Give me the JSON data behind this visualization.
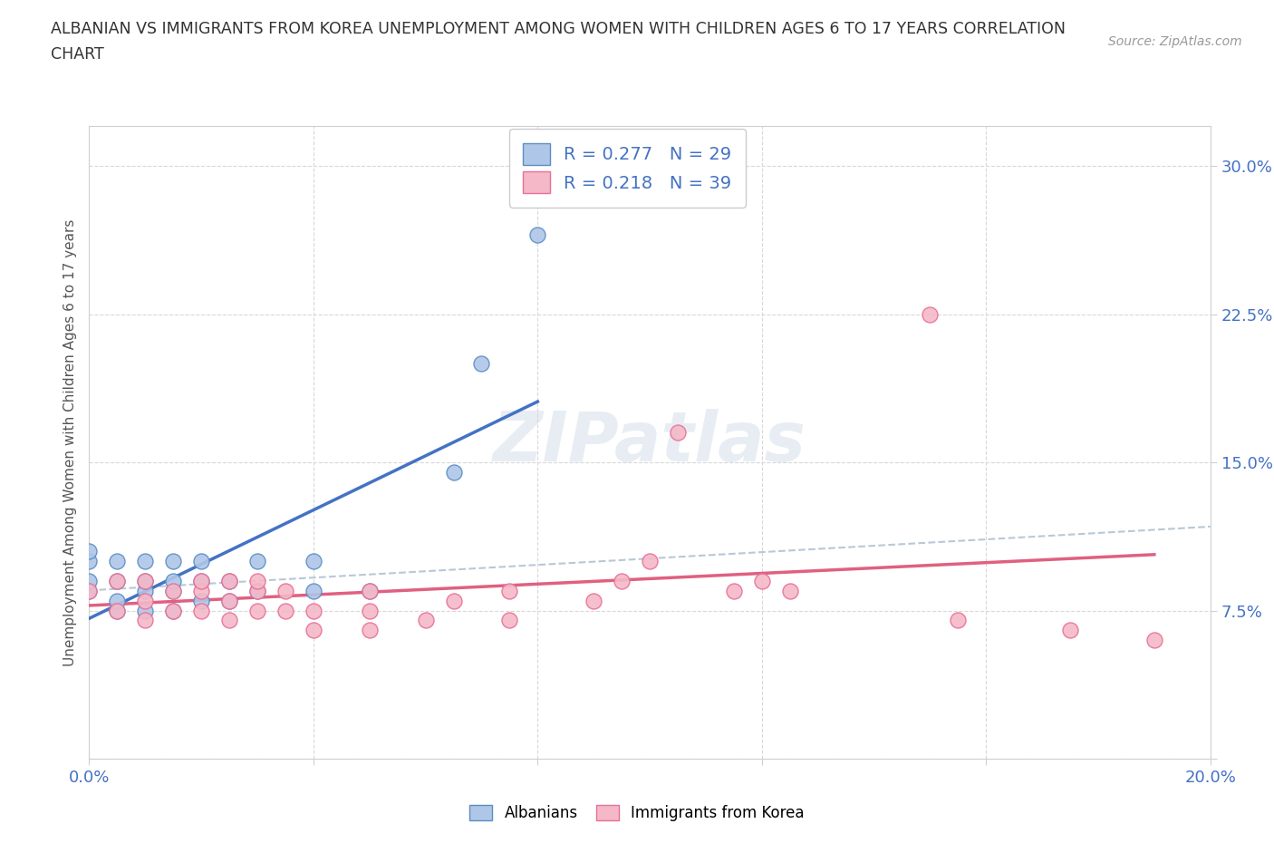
{
  "title_line1": "ALBANIAN VS IMMIGRANTS FROM KOREA UNEMPLOYMENT AMONG WOMEN WITH CHILDREN AGES 6 TO 17 YEARS CORRELATION",
  "title_line2": "CHART",
  "source_text": "Source: ZipAtlas.com",
  "ylabel": "Unemployment Among Women with Children Ages 6 to 17 years",
  "xlim": [
    0.0,
    0.2
  ],
  "ylim": [
    0.0,
    0.32
  ],
  "xticks": [
    0.0,
    0.04,
    0.08,
    0.12,
    0.16,
    0.2
  ],
  "xticklabels": [
    "0.0%",
    "",
    "",
    "",
    "",
    "20.0%"
  ],
  "yticks": [
    0.0,
    0.075,
    0.15,
    0.225,
    0.3
  ],
  "yticklabels": [
    "",
    "7.5%",
    "15.0%",
    "22.5%",
    "30.0%"
  ],
  "albanian_color": "#aec6e8",
  "korean_color": "#f4b8c8",
  "albanian_edge_color": "#5b8ec4",
  "korean_edge_color": "#e87096",
  "albanian_line_color": "#4472c4",
  "korean_line_color": "#e06080",
  "trend_line_color": "#b8c8d8",
  "R_albanian": 0.277,
  "N_albanian": 29,
  "R_korean": 0.218,
  "N_korean": 39,
  "albanian_x": [
    0.0,
    0.0,
    0.0,
    0.0,
    0.005,
    0.005,
    0.005,
    0.005,
    0.01,
    0.01,
    0.01,
    0.01,
    0.015,
    0.015,
    0.015,
    0.015,
    0.02,
    0.02,
    0.02,
    0.025,
    0.025,
    0.03,
    0.03,
    0.04,
    0.04,
    0.05,
    0.065,
    0.07,
    0.08
  ],
  "albanian_y": [
    0.085,
    0.09,
    0.1,
    0.105,
    0.075,
    0.08,
    0.09,
    0.1,
    0.075,
    0.085,
    0.09,
    0.1,
    0.075,
    0.085,
    0.09,
    0.1,
    0.08,
    0.09,
    0.1,
    0.08,
    0.09,
    0.085,
    0.1,
    0.085,
    0.1,
    0.085,
    0.145,
    0.2,
    0.265
  ],
  "korean_x": [
    0.0,
    0.005,
    0.005,
    0.01,
    0.01,
    0.01,
    0.015,
    0.015,
    0.02,
    0.02,
    0.02,
    0.025,
    0.025,
    0.025,
    0.03,
    0.03,
    0.03,
    0.035,
    0.035,
    0.04,
    0.04,
    0.05,
    0.05,
    0.05,
    0.06,
    0.065,
    0.075,
    0.075,
    0.09,
    0.095,
    0.1,
    0.105,
    0.115,
    0.12,
    0.125,
    0.15,
    0.155,
    0.175,
    0.19
  ],
  "korean_y": [
    0.085,
    0.075,
    0.09,
    0.07,
    0.08,
    0.09,
    0.075,
    0.085,
    0.075,
    0.085,
    0.09,
    0.07,
    0.08,
    0.09,
    0.075,
    0.085,
    0.09,
    0.075,
    0.085,
    0.065,
    0.075,
    0.065,
    0.075,
    0.085,
    0.07,
    0.08,
    0.07,
    0.085,
    0.08,
    0.09,
    0.1,
    0.165,
    0.085,
    0.09,
    0.085,
    0.225,
    0.07,
    0.065,
    0.06
  ],
  "watermark_text": "ZIPatlas",
  "background_color": "#ffffff",
  "grid_color": "#d8d8d8"
}
